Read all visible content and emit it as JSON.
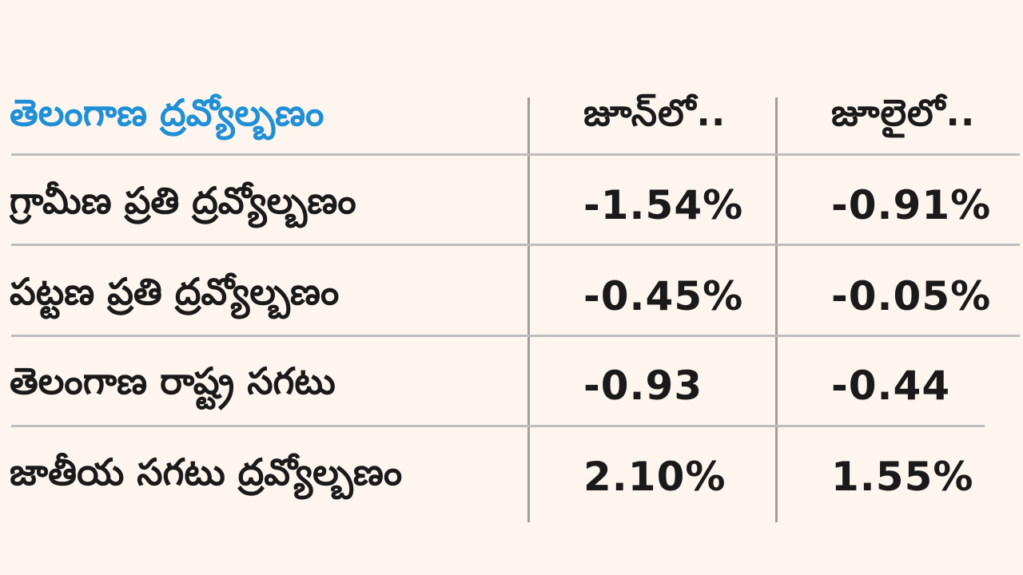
{
  "table": {
    "header": {
      "label": "తెలంగాణ ద్రవ్యోల్బణం",
      "col_june": "జూన్‌లో..",
      "col_july": "జూలైలో.."
    },
    "rows": [
      {
        "label": "గ్రామీణ ప్రతి ద్రవ్యోల్బణం",
        "june": "-1.54%",
        "july": "-0.91%"
      },
      {
        "label": "పట్టణ ప్రతి ద్రవ్యోల్బణం",
        "june": "-0.45%",
        "july": "-0.05%"
      },
      {
        "label": "తెలంగాణ రాష్ట్ర సగటు",
        "june": "-0.93",
        "july": "-0.44"
      },
      {
        "label": "జాతీయ సగటు ద్రవ్యోల్బణం",
        "june": "2.10%",
        "july": "1.55%"
      }
    ]
  },
  "colors": {
    "background": "#fdf5ee",
    "header_text": "#1f8fd6",
    "body_text": "#1a1a1a",
    "rule": "#bdbdbd"
  }
}
